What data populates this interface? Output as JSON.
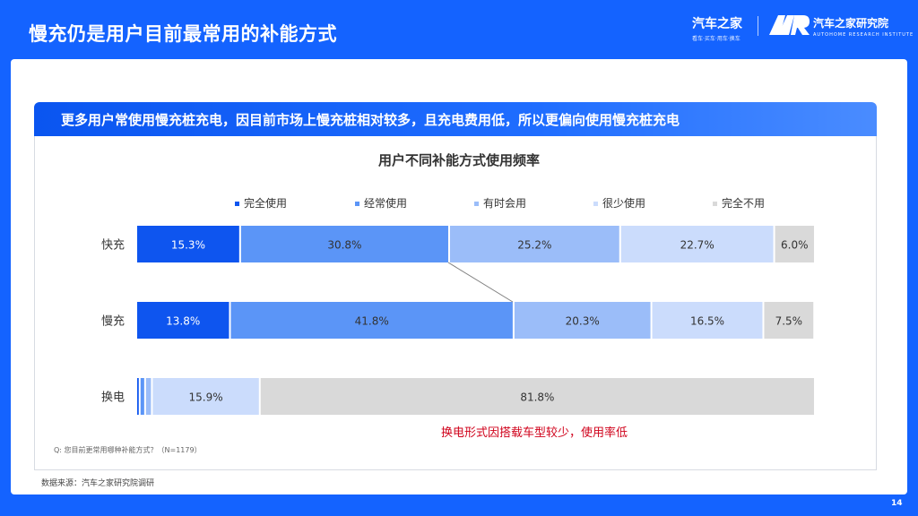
{
  "header": {
    "title": "慢充仍是用户目前最常用的补能方式",
    "logo_autohome_main": "汽车之家",
    "logo_autohome_sub": "看车·买车·用车·换车",
    "logo_institute_main": "汽车之家研究院",
    "logo_institute_sub": "AUTOHOME RESEARCH INSTITUTE"
  },
  "banner": {
    "text": "更多用户常使用慢充桩充电，因目前市场上慢充桩相对较多，且充电费用低，所以更偏向使用慢充桩充电"
  },
  "annotation": "换电形式因搭载车型较少，使用率低",
  "question": "Q:  您目前更常用哪种补能方式？（N=1179）",
  "source": "数据来源：汽车之家研究院调研",
  "page_number": "14",
  "colors": {
    "brand_blue": "#1463ff",
    "series": [
      "#0e55ef",
      "#5b95f7",
      "#9bbdf9",
      "#cbdcfc",
      "#d9d9d9"
    ],
    "annotation": "#d0021b"
  },
  "chart_data": {
    "type": "bar",
    "orientation": "horizontal",
    "stacked": true,
    "title": "用户不同补能方式使用频率",
    "categories": [
      "快充",
      "慢充",
      "换电"
    ],
    "series": [
      {
        "name": "完全使用",
        "values": [
          15.3,
          13.8,
          0.5
        ]
      },
      {
        "name": "经常使用",
        "values": [
          30.8,
          41.8,
          0.8
        ]
      },
      {
        "name": "有时会用",
        "values": [
          25.2,
          20.3,
          1.0
        ]
      },
      {
        "name": "很少使用",
        "values": [
          22.7,
          16.5,
          15.9
        ]
      },
      {
        "name": "完全不用",
        "values": [
          6.0,
          7.5,
          81.8
        ]
      }
    ],
    "data_labels": [
      [
        "15.3%",
        "30.8%",
        "25.2%",
        "22.7%",
        "6.0%"
      ],
      [
        "13.8%",
        "41.8%",
        "20.3%",
        "16.5%",
        "7.5%"
      ],
      [
        "",
        "",
        "",
        "15.9%",
        "81.8%"
      ]
    ],
    "legend_position": "top",
    "grid": false
  }
}
